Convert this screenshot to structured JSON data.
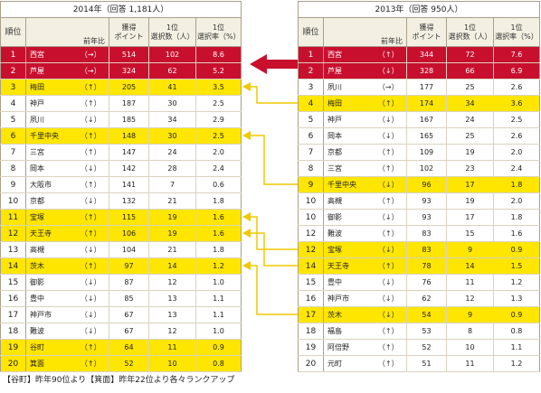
{
  "left": {
    "title": "2014年（回答 1,181人）",
    "headers": {
      "rank": "順位",
      "prev": "前年比",
      "points": "獲得\nポイント",
      "count": "1位\n選択数（人）",
      "rate": "1位\n選択率（%）"
    },
    "rows": [
      {
        "rank": "1",
        "name": "西宮",
        "arrow": "（→）",
        "points": "514",
        "count": "102",
        "rate": "8.6",
        "hl": "red"
      },
      {
        "rank": "2",
        "name": "芦屋",
        "arrow": "（→）",
        "points": "324",
        "count": "62",
        "rate": "5.2",
        "hl": "red"
      },
      {
        "rank": "3",
        "name": "梅田",
        "arrow": "（↑）",
        "points": "205",
        "count": "41",
        "rate": "3.5",
        "hl": "yel"
      },
      {
        "rank": "4",
        "name": "神戸",
        "arrow": "（↑）",
        "points": "187",
        "count": "30",
        "rate": "2.5",
        "hl": ""
      },
      {
        "rank": "5",
        "name": "夙川",
        "arrow": "（↓）",
        "points": "185",
        "count": "34",
        "rate": "2.9",
        "hl": ""
      },
      {
        "rank": "6",
        "name": "千里中央",
        "arrow": "（↑）",
        "points": "148",
        "count": "30",
        "rate": "2.5",
        "hl": "yel"
      },
      {
        "rank": "7",
        "name": "三宮",
        "arrow": "（↑）",
        "points": "147",
        "count": "24",
        "rate": "2.0",
        "hl": ""
      },
      {
        "rank": "8",
        "name": "岡本",
        "arrow": "（↓）",
        "points": "142",
        "count": "28",
        "rate": "2.4",
        "hl": ""
      },
      {
        "rank": "9",
        "name": "大阪市",
        "arrow": "（↑）",
        "points": "141",
        "count": "7",
        "rate": "0.6",
        "hl": ""
      },
      {
        "rank": "10",
        "name": "京都",
        "arrow": "（↓）",
        "points": "132",
        "count": "21",
        "rate": "1.8",
        "hl": ""
      },
      {
        "rank": "11",
        "name": "宝塚",
        "arrow": "（↑）",
        "points": "115",
        "count": "19",
        "rate": "1.6",
        "hl": "yel"
      },
      {
        "rank": "12",
        "name": "天王寺",
        "arrow": "（↑）",
        "points": "106",
        "count": "19",
        "rate": "1.6",
        "hl": "yel"
      },
      {
        "rank": "13",
        "name": "高槻",
        "arrow": "（↓）",
        "points": "104",
        "count": "21",
        "rate": "1.8",
        "hl": ""
      },
      {
        "rank": "14",
        "name": "茨木",
        "arrow": "（↑）",
        "points": "97",
        "count": "14",
        "rate": "1.2",
        "hl": "yel"
      },
      {
        "rank": "15",
        "name": "御影",
        "arrow": "（↓）",
        "points": "87",
        "count": "12",
        "rate": "1.0",
        "hl": ""
      },
      {
        "rank": "16",
        "name": "豊中",
        "arrow": "（↓）",
        "points": "85",
        "count": "13",
        "rate": "1.1",
        "hl": ""
      },
      {
        "rank": "17",
        "name": "神戸市",
        "arrow": "（↓）",
        "points": "67",
        "count": "13",
        "rate": "1.1",
        "hl": ""
      },
      {
        "rank": "18",
        "name": "難波",
        "arrow": "（↓）",
        "points": "67",
        "count": "12",
        "rate": "1.0",
        "hl": ""
      },
      {
        "rank": "19",
        "name": "谷町",
        "arrow": "（↑）",
        "points": "64",
        "count": "11",
        "rate": "0.9",
        "hl": "yel"
      },
      {
        "rank": "20",
        "name": "箕面",
        "arrow": "（↑）",
        "points": "52",
        "count": "10",
        "rate": "0.8",
        "hl": "yel"
      }
    ]
  },
  "right": {
    "title": "2013年（回答 950人）",
    "headers": {
      "rank": "順位",
      "prev": "前年比",
      "points": "獲得\nポイント",
      "count": "1位\n選択数（人）",
      "rate": "1位\n選択率（%）"
    },
    "rows": [
      {
        "rank": "1",
        "name": "西宮",
        "arrow": "（↑）",
        "points": "344",
        "count": "72",
        "rate": "7.6",
        "hl": "red"
      },
      {
        "rank": "2",
        "name": "芦屋",
        "arrow": "（↓）",
        "points": "328",
        "count": "66",
        "rate": "6.9",
        "hl": "red"
      },
      {
        "rank": "3",
        "name": "夙川",
        "arrow": "（→）",
        "points": "177",
        "count": "25",
        "rate": "2.6",
        "hl": ""
      },
      {
        "rank": "4",
        "name": "梅田",
        "arrow": "（↑）",
        "points": "174",
        "count": "34",
        "rate": "3.6",
        "hl": "yel"
      },
      {
        "rank": "5",
        "name": "神戸",
        "arrow": "（↓）",
        "points": "167",
        "count": "24",
        "rate": "2.5",
        "hl": ""
      },
      {
        "rank": "6",
        "name": "岡本",
        "arrow": "（↓）",
        "points": "165",
        "count": "25",
        "rate": "2.6",
        "hl": ""
      },
      {
        "rank": "7",
        "name": "京都",
        "arrow": "（↑）",
        "points": "109",
        "count": "19",
        "rate": "2.0",
        "hl": ""
      },
      {
        "rank": "8",
        "name": "三宮",
        "arrow": "（↑）",
        "points": "102",
        "count": "23",
        "rate": "2.4",
        "hl": ""
      },
      {
        "rank": "9",
        "name": "千里中央",
        "arrow": "（↓）",
        "points": "96",
        "count": "17",
        "rate": "1.8",
        "hl": "yel"
      },
      {
        "rank": "10",
        "name": "高槻",
        "arrow": "（↑）",
        "points": "93",
        "count": "19",
        "rate": "2.0",
        "hl": ""
      },
      {
        "rank": "10",
        "name": "御影",
        "arrow": "（↓）",
        "points": "93",
        "count": "17",
        "rate": "1.8",
        "hl": ""
      },
      {
        "rank": "12",
        "name": "難波",
        "arrow": "（↑）",
        "points": "83",
        "count": "15",
        "rate": "1.6",
        "hl": ""
      },
      {
        "rank": "12",
        "name": "宝塚",
        "arrow": "（↓）",
        "points": "83",
        "count": "9",
        "rate": "0.9",
        "hl": "yel"
      },
      {
        "rank": "14",
        "name": "天王寺",
        "arrow": "（↑）",
        "points": "78",
        "count": "14",
        "rate": "1.5",
        "hl": "yel"
      },
      {
        "rank": "15",
        "name": "豊中",
        "arrow": "（↓）",
        "points": "76",
        "count": "11",
        "rate": "1.2",
        "hl": ""
      },
      {
        "rank": "16",
        "name": "神戸市",
        "arrow": "（↓）",
        "points": "62",
        "count": "12",
        "rate": "1.3",
        "hl": ""
      },
      {
        "rank": "17",
        "name": "茨木",
        "arrow": "（↓）",
        "points": "54",
        "count": "9",
        "rate": "0.9",
        "hl": "yel"
      },
      {
        "rank": "18",
        "name": "福島",
        "arrow": "（↑）",
        "points": "53",
        "count": "8",
        "rate": "0.8",
        "hl": ""
      },
      {
        "rank": "19",
        "name": "阿倍野",
        "arrow": "（↑）",
        "points": "52",
        "count": "10",
        "rate": "1.1",
        "hl": ""
      },
      {
        "rank": "20",
        "name": "元町",
        "arrow": "（↑）",
        "points": "51",
        "count": "11",
        "rate": "1.2",
        "hl": ""
      }
    ]
  },
  "note": "【谷町】昨年90位より【箕面】昨年22位より各々ランクアップ",
  "colors": {
    "red": "#c8102e",
    "yellow": "#ffe600",
    "border": "#a8a08c",
    "header_bg": "#f3efe2",
    "connector": "#f0c800"
  },
  "icons": {
    "big_arrow": "left-arrow-icon",
    "connector": "elbow-arrow-icon"
  }
}
